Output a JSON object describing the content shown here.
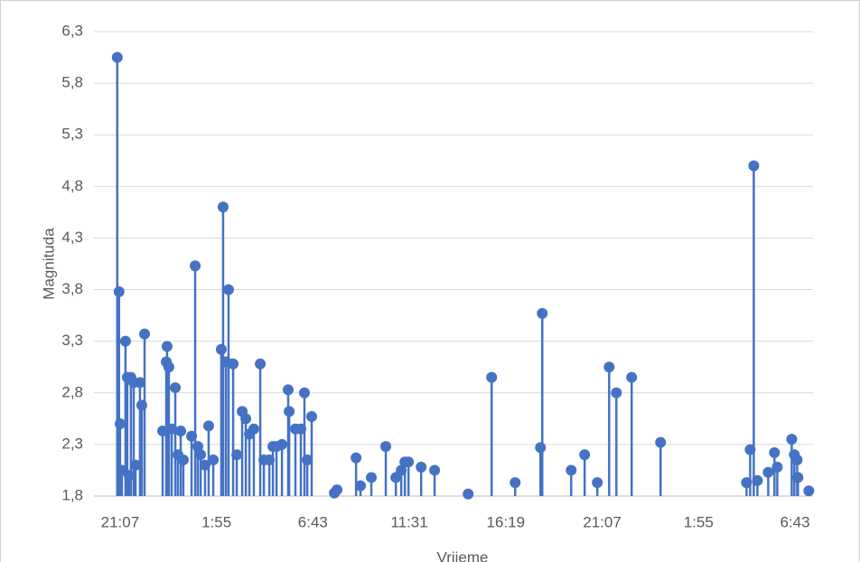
{
  "chart_data": {
    "type": "stem",
    "y_label": "Magnituda",
    "x_label": "Vrijeme",
    "color": "#4472c4",
    "grid": true,
    "xlim": [
      -1.3,
      34.5
    ],
    "xticks": [
      {
        "value": 0,
        "label": "21:07"
      },
      {
        "value": 4.8,
        "label": "1:55"
      },
      {
        "value": 9.6,
        "label": "6:43"
      },
      {
        "value": 14.4,
        "label": "11:31"
      },
      {
        "value": 19.2,
        "label": "16:19"
      },
      {
        "value": 24,
        "label": "21:07"
      },
      {
        "value": 28.8,
        "label": "1:55"
      },
      {
        "value": 33.6,
        "label": "6:43"
      }
    ],
    "ylim": [
      1.8,
      6.3
    ],
    "yticks": [
      {
        "value": 1.8,
        "label": "1,8"
      },
      {
        "value": 2.3,
        "label": "2,3"
      },
      {
        "value": 2.8,
        "label": "2,8"
      },
      {
        "value": 3.3,
        "label": "3,3"
      },
      {
        "value": 3.8,
        "label": "3,8"
      },
      {
        "value": 4.3,
        "label": "4,3"
      },
      {
        "value": 4.8,
        "label": "4,8"
      },
      {
        "value": 5.3,
        "label": "5,3"
      },
      {
        "value": 5.8,
        "label": "5,8"
      },
      {
        "value": 6.3,
        "label": "6,3"
      }
    ],
    "x": [
      -0.14,
      -0.05,
      0,
      0.09,
      0.27,
      0.36,
      0.45,
      0.54,
      0.68,
      0.77,
      0.99,
      1.08,
      1.22,
      2.12,
      2.3,
      2.34,
      2.43,
      2.57,
      2.75,
      2.88,
      3.02,
      3.15,
      3.56,
      3.74,
      3.87,
      4.01,
      4.23,
      4.41,
      4.64,
      5.04,
      5.13,
      5.27,
      5.4,
      5.63,
      5.81,
      6.08,
      6.26,
      6.44,
      6.66,
      6.98,
      7.16,
      7.43,
      7.61,
      7.79,
      8.06,
      8.37,
      8.42,
      8.73,
      9.0,
      9.18,
      9.32,
      9.54,
      10.67,
      10.8,
      11.75,
      11.97,
      12.51,
      13.23,
      13.73,
      14.0,
      14.18,
      14.36,
      14.99,
      15.66,
      17.33,
      18.5,
      19.67,
      20.93,
      21.02,
      22.46,
      23.13,
      23.76,
      24.35,
      24.71,
      25.47,
      26.91,
      31.19,
      31.37,
      31.55,
      31.73,
      32.27,
      32.58,
      32.72,
      33.44,
      33.57,
      33.71,
      33.75,
      34.29
    ],
    "values": [
      6.05,
      3.78,
      2.5,
      2.05,
      3.3,
      2.95,
      2.0,
      2.95,
      2.9,
      2.1,
      2.9,
      2.68,
      3.37,
      2.43,
      3.1,
      3.25,
      3.05,
      2.45,
      2.85,
      2.2,
      2.43,
      2.15,
      2.38,
      4.03,
      2.28,
      2.2,
      2.1,
      2.48,
      2.15,
      3.22,
      4.6,
      3.1,
      3.8,
      3.08,
      2.2,
      2.62,
      2.55,
      2.4,
      2.45,
      3.08,
      2.15,
      2.15,
      2.28,
      2.28,
      2.3,
      2.83,
      2.62,
      2.45,
      2.45,
      2.8,
      2.15,
      2.57,
      1.83,
      1.86,
      2.17,
      1.9,
      1.98,
      2.28,
      1.98,
      2.05,
      2.13,
      2.13,
      2.08,
      2.05,
      1.82,
      2.95,
      1.93,
      2.27,
      3.57,
      2.05,
      2.2,
      1.93,
      3.05,
      2.8,
      2.95,
      2.32,
      1.93,
      2.25,
      5.0,
      1.95,
      2.03,
      2.22,
      2.08,
      2.35,
      2.2,
      2.15,
      1.98,
      1.85
    ]
  }
}
